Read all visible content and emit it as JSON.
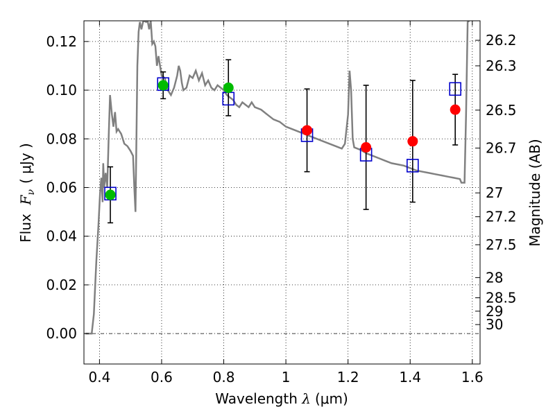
{
  "chart_data": {
    "type": "scatter",
    "xlabel": {
      "prefix": "Wavelength ",
      "symbol": "λ",
      "units": "(μm)"
    },
    "ylabel": {
      "prefix": "Flux  ",
      "symbol": "F",
      "subscript": "ν",
      "units": "( μJy )"
    },
    "y2label": "Magnitude (AB)",
    "xlim": [
      0.35,
      1.625
    ],
    "ylim": [
      -0.0125,
      0.1285
    ],
    "x_ticks": [
      0.4,
      0.6,
      0.8,
      1.0,
      1.2,
      1.4,
      1.6
    ],
    "x_tick_labels": [
      "0.4",
      "0.6",
      "0.8",
      "1",
      "1.2",
      "1.4",
      "1.6"
    ],
    "y_ticks": [
      0.0,
      0.02,
      0.04,
      0.06,
      0.08,
      0.1,
      0.12
    ],
    "y_tick_labels": [
      "0.00",
      "0.02",
      "0.04",
      "0.06",
      "0.08",
      "0.10",
      "0.12"
    ],
    "y2_ticks": [
      {
        "label": "26.2",
        "flux": 0.1205
      },
      {
        "label": "26.3",
        "flux": 0.11
      },
      {
        "label": "26.5",
        "flux": 0.0918
      },
      {
        "label": "26.7",
        "flux": 0.0762
      },
      {
        "label": "27",
        "flux": 0.0578
      },
      {
        "label": "27.2",
        "flux": 0.048
      },
      {
        "label": "27.5",
        "flux": 0.0365
      },
      {
        "label": "28",
        "flux": 0.023
      },
      {
        "label": "28.5",
        "flux": 0.0147
      },
      {
        "label": "29",
        "flux": 0.0092
      },
      {
        "label": "30",
        "flux": 0.0037
      }
    ],
    "grid": true,
    "zero_line": true,
    "model_spectrum": {
      "color": "#808080",
      "points": [
        [
          0.355,
          0.0
        ],
        [
          0.375,
          0.0
        ],
        [
          0.382,
          0.008
        ],
        [
          0.39,
          0.03
        ],
        [
          0.397,
          0.045
        ],
        [
          0.402,
          0.058
        ],
        [
          0.406,
          0.064
        ],
        [
          0.41,
          0.054
        ],
        [
          0.412,
          0.07
        ],
        [
          0.415,
          0.06
        ],
        [
          0.42,
          0.066
        ],
        [
          0.425,
          0.06
        ],
        [
          0.43,
          0.082
        ],
        [
          0.434,
          0.098
        ],
        [
          0.44,
          0.09
        ],
        [
          0.445,
          0.085
        ],
        [
          0.45,
          0.091
        ],
        [
          0.455,
          0.083
        ],
        [
          0.46,
          0.084
        ],
        [
          0.47,
          0.082
        ],
        [
          0.48,
          0.078
        ],
        [
          0.49,
          0.077
        ],
        [
          0.5,
          0.075
        ],
        [
          0.508,
          0.073
        ],
        [
          0.512,
          0.06
        ],
        [
          0.516,
          0.05
        ],
        [
          0.522,
          0.11
        ],
        [
          0.526,
          0.124
        ],
        [
          0.53,
          0.128
        ],
        [
          0.535,
          0.125
        ],
        [
          0.54,
          0.128
        ],
        [
          0.545,
          0.1285
        ],
        [
          0.55,
          0.128
        ],
        [
          0.555,
          0.1285
        ],
        [
          0.56,
          0.125
        ],
        [
          0.565,
          0.1285
        ],
        [
          0.57,
          0.119
        ],
        [
          0.575,
          0.12
        ],
        [
          0.58,
          0.118
        ],
        [
          0.585,
          0.11
        ],
        [
          0.59,
          0.114
        ],
        [
          0.595,
          0.11
        ],
        [
          0.6,
          0.106
        ],
        [
          0.61,
          0.105
        ],
        [
          0.62,
          0.1
        ],
        [
          0.63,
          0.098
        ],
        [
          0.64,
          0.101
        ],
        [
          0.65,
          0.106
        ],
        [
          0.655,
          0.11
        ],
        [
          0.66,
          0.108
        ],
        [
          0.665,
          0.103
        ],
        [
          0.67,
          0.1
        ],
        [
          0.68,
          0.101
        ],
        [
          0.69,
          0.106
        ],
        [
          0.7,
          0.105
        ],
        [
          0.71,
          0.108
        ],
        [
          0.72,
          0.104
        ],
        [
          0.73,
          0.107
        ],
        [
          0.74,
          0.102
        ],
        [
          0.75,
          0.104
        ],
        [
          0.76,
          0.101
        ],
        [
          0.77,
          0.1
        ],
        [
          0.78,
          0.102
        ],
        [
          0.79,
          0.101
        ],
        [
          0.8,
          0.1
        ],
        [
          0.81,
          0.098
        ],
        [
          0.82,
          0.097
        ],
        [
          0.83,
          0.096
        ],
        [
          0.84,
          0.094
        ],
        [
          0.85,
          0.093
        ],
        [
          0.86,
          0.095
        ],
        [
          0.87,
          0.094
        ],
        [
          0.88,
          0.093
        ],
        [
          0.89,
          0.095
        ],
        [
          0.9,
          0.093
        ],
        [
          0.92,
          0.092
        ],
        [
          0.94,
          0.09
        ],
        [
          0.96,
          0.088
        ],
        [
          0.98,
          0.087
        ],
        [
          1.0,
          0.085
        ],
        [
          1.02,
          0.084
        ],
        [
          1.04,
          0.083
        ],
        [
          1.06,
          0.082
        ],
        [
          1.08,
          0.081
        ],
        [
          1.1,
          0.08
        ],
        [
          1.12,
          0.079
        ],
        [
          1.14,
          0.078
        ],
        [
          1.16,
          0.077
        ],
        [
          1.18,
          0.076
        ],
        [
          1.19,
          0.078
        ],
        [
          1.2,
          0.09
        ],
        [
          1.205,
          0.108
        ],
        [
          1.21,
          0.1
        ],
        [
          1.215,
          0.08
        ],
        [
          1.22,
          0.0765
        ],
        [
          1.24,
          0.0755
        ],
        [
          1.26,
          0.074
        ],
        [
          1.28,
          0.073
        ],
        [
          1.3,
          0.072
        ],
        [
          1.32,
          0.071
        ],
        [
          1.34,
          0.07
        ],
        [
          1.36,
          0.0695
        ],
        [
          1.38,
          0.069
        ],
        [
          1.4,
          0.068
        ],
        [
          1.42,
          0.067
        ],
        [
          1.44,
          0.0665
        ],
        [
          1.46,
          0.066
        ],
        [
          1.48,
          0.0655
        ],
        [
          1.5,
          0.065
        ],
        [
          1.52,
          0.0645
        ],
        [
          1.54,
          0.064
        ],
        [
          1.56,
          0.0635
        ],
        [
          1.565,
          0.062
        ],
        [
          1.575,
          0.062
        ],
        [
          1.58,
          0.09
        ],
        [
          1.585,
          0.128
        ],
        [
          1.59,
          0.1285
        ]
      ]
    },
    "series": [
      {
        "marker": "square",
        "color": "#0000cc",
        "points": [
          {
            "x": 0.435,
            "y": 0.0575
          },
          {
            "x": 0.605,
            "y": 0.1025
          },
          {
            "x": 0.815,
            "y": 0.0965
          },
          {
            "x": 1.068,
            "y": 0.0815
          },
          {
            "x": 1.258,
            "y": 0.0735
          },
          {
            "x": 1.408,
            "y": 0.069
          },
          {
            "x": 1.545,
            "y": 0.1005
          }
        ]
      },
      {
        "marker": "circle",
        "color": "#00bb00",
        "points": [
          {
            "x": 0.435,
            "y": 0.057,
            "err": 0.0115
          },
          {
            "x": 0.605,
            "y": 0.102,
            "err": 0.0055
          },
          {
            "x": 0.815,
            "y": 0.101,
            "err": 0.0115
          }
        ]
      },
      {
        "marker": "circle",
        "color": "#ff0000",
        "points": [
          {
            "x": 1.068,
            "y": 0.0835,
            "err": 0.017
          },
          {
            "x": 1.258,
            "y": 0.0765,
            "err": 0.0255
          },
          {
            "x": 1.408,
            "y": 0.079,
            "err": 0.025
          },
          {
            "x": 1.545,
            "y": 0.092,
            "err": 0.0145
          }
        ]
      }
    ]
  }
}
